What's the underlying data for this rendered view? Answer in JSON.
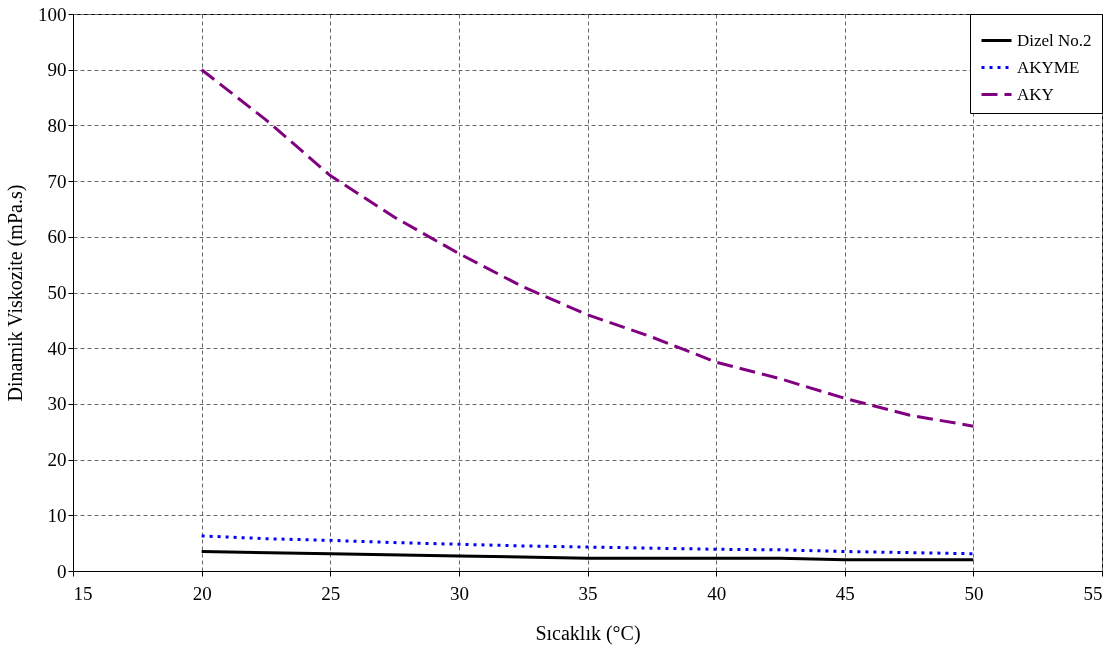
{
  "chart_data": {
    "type": "line",
    "xlabel": "Sıcaklık (°C)",
    "ylabel": "Dinamik Viskozite (mPa.s)",
    "xlim": [
      15,
      55
    ],
    "xticks": [
      15,
      20,
      25,
      30,
      35,
      40,
      45,
      50,
      55
    ],
    "ylim": [
      0,
      100
    ],
    "yticks": [
      0,
      10,
      20,
      30,
      40,
      50,
      60,
      70,
      80,
      90,
      100
    ],
    "grid": true,
    "legend": "top right",
    "marker": "none",
    "series": [
      {
        "name": "Dizel No.2",
        "color": "#000000",
        "line_style": "solid",
        "x": [
          20,
          25,
          30,
          35,
          40,
          42.5,
          45,
          50
        ],
        "values": [
          3.5,
          3.1,
          2.7,
          2.3,
          2.3,
          2.3,
          2.0,
          2.0
        ]
      },
      {
        "name": "AKYME",
        "color": "#0000ff",
        "line_style": "dotted",
        "x": [
          20,
          22.5,
          25,
          27.5,
          30,
          32.5,
          35,
          37.5,
          40,
          42.5,
          45,
          47.5,
          50
        ],
        "values": [
          6.3,
          5.8,
          5.5,
          5.1,
          4.8,
          4.5,
          4.3,
          4.1,
          3.9,
          3.8,
          3.5,
          3.3,
          3.1
        ]
      },
      {
        "name": "AKY",
        "color": "#800080",
        "line_style": "dashed",
        "x": [
          20,
          22.5,
          25,
          27.5,
          30,
          32.5,
          35,
          37.5,
          40,
          42.5,
          45,
          47.5,
          50
        ],
        "values": [
          90,
          81,
          71,
          63.5,
          57,
          51,
          46,
          42,
          37.5,
          34.5,
          31,
          28,
          26
        ]
      }
    ]
  }
}
